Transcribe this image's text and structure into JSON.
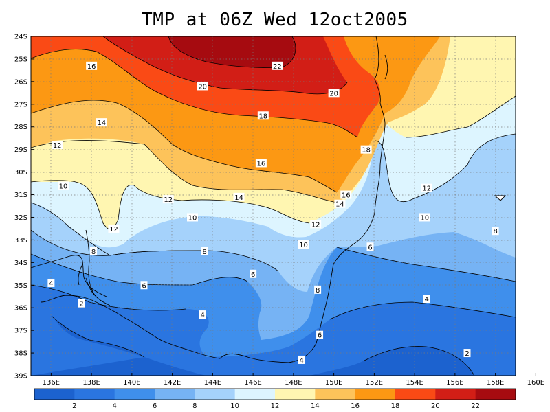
{
  "title": "TMP at 06Z Wed 12oct2005",
  "map": {
    "lat_ticks": [
      "24S",
      "25S",
      "26S",
      "27S",
      "28S",
      "29S",
      "30S",
      "31S",
      "32S",
      "33S",
      "34S",
      "35S",
      "36S",
      "37S",
      "38S",
      "39S"
    ],
    "lon_ticks": [
      "136E",
      "138E",
      "140E",
      "142E",
      "144E",
      "146E",
      "148E",
      "150E",
      "152E",
      "154E",
      "156E",
      "158E",
      "160E"
    ]
  },
  "contour_labels": [
    {
      "text": "16",
      "lon": 138.0,
      "lat": 25.3
    },
    {
      "text": "22",
      "lon": 147.2,
      "lat": 25.3
    },
    {
      "text": "20",
      "lon": 143.5,
      "lat": 26.2
    },
    {
      "text": "20",
      "lon": 150.0,
      "lat": 26.5
    },
    {
      "text": "14",
      "lon": 138.5,
      "lat": 27.8
    },
    {
      "text": "18",
      "lon": 146.5,
      "lat": 27.5
    },
    {
      "text": "18",
      "lon": 151.6,
      "lat": 29.0
    },
    {
      "text": "12",
      "lon": 136.3,
      "lat": 28.8
    },
    {
      "text": "16",
      "lon": 146.4,
      "lat": 29.6
    },
    {
      "text": "10",
      "lon": 136.6,
      "lat": 30.6
    },
    {
      "text": "12",
      "lon": 141.8,
      "lat": 31.2
    },
    {
      "text": "14",
      "lon": 145.3,
      "lat": 31.1
    },
    {
      "text": "16",
      "lon": 150.6,
      "lat": 31.0
    },
    {
      "text": "14",
      "lon": 150.3,
      "lat": 31.4
    },
    {
      "text": "12",
      "lon": 154.6,
      "lat": 30.7
    },
    {
      "text": "12",
      "lon": 139.1,
      "lat": 32.5
    },
    {
      "text": "10",
      "lon": 143.0,
      "lat": 32.0
    },
    {
      "text": "12",
      "lon": 149.1,
      "lat": 32.3
    },
    {
      "text": "10",
      "lon": 154.5,
      "lat": 32.0
    },
    {
      "text": "8",
      "lon": 158.0,
      "lat": 32.6
    },
    {
      "text": "10",
      "lon": 148.5,
      "lat": 33.2
    },
    {
      "text": "6",
      "lon": 151.8,
      "lat": 33.3
    },
    {
      "text": "8",
      "lon": 138.1,
      "lat": 33.5
    },
    {
      "text": "8",
      "lon": 143.6,
      "lat": 33.5
    },
    {
      "text": "6",
      "lon": 146.0,
      "lat": 34.5
    },
    {
      "text": "6",
      "lon": 140.6,
      "lat": 35.0
    },
    {
      "text": "4",
      "lon": 136.0,
      "lat": 34.9
    },
    {
      "text": "8",
      "lon": 149.2,
      "lat": 35.2
    },
    {
      "text": "2",
      "lon": 137.5,
      "lat": 35.8
    },
    {
      "text": "4",
      "lon": 143.5,
      "lat": 36.3
    },
    {
      "text": "4",
      "lon": 154.6,
      "lat": 35.6
    },
    {
      "text": "6",
      "lon": 149.3,
      "lat": 37.2
    },
    {
      "text": "4",
      "lon": 148.4,
      "lat": 38.3
    },
    {
      "text": "2",
      "lon": 156.6,
      "lat": 38.0
    }
  ],
  "colorbar": {
    "levels": [
      "2",
      "4",
      "6",
      "8",
      "10",
      "12",
      "14",
      "16",
      "18",
      "20",
      "22"
    ],
    "colors": [
      "#1c62cf",
      "#2a75e0",
      "#3f8fec",
      "#76b3f4",
      "#a5d2fb",
      "#ddf5ff",
      "#fff6b1",
      "#fdc35a",
      "#fc9813",
      "#fa4a15",
      "#d21e16",
      "#a60b10"
    ]
  }
}
